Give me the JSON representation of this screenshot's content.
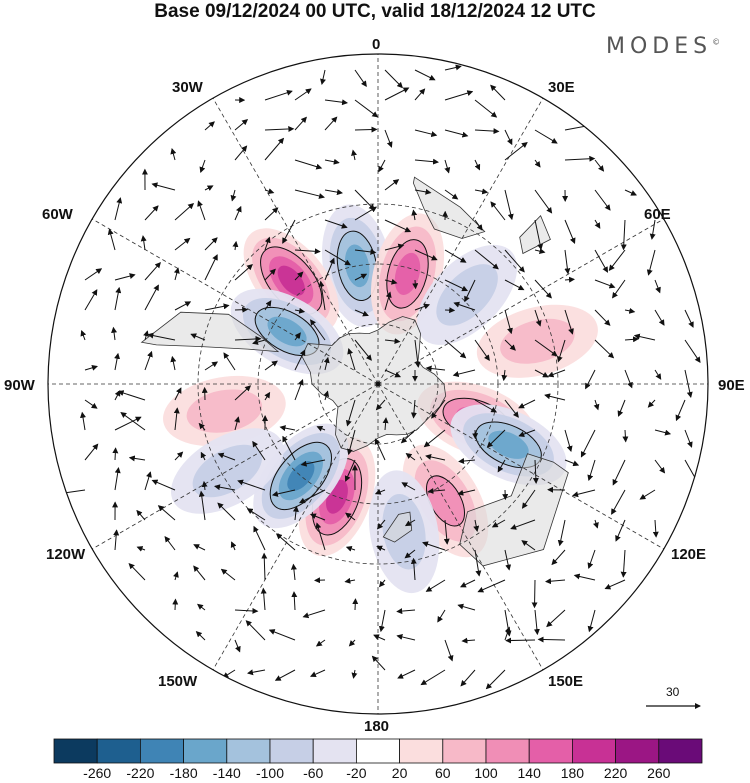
{
  "title": "Base 09/12/2024 00 UTC, valid 18/12/2024 12 UTC",
  "brand": "MODES",
  "brand_mark": "©",
  "longitude_labels": {
    "lon0": "0",
    "lon30e": "30E",
    "lon60e": "60E",
    "lon90e": "90E",
    "lon120e": "120E",
    "lon150e": "150E",
    "lon180": "180",
    "lon150w": "150W",
    "lon120w": "120W",
    "lon90w": "90W",
    "lon60w": "60W",
    "lon30w": "30W"
  },
  "reference_vector": "30",
  "colorbar": {
    "colors": [
      "#0c3a5f",
      "#1e5f8f",
      "#3f84b5",
      "#6aa6cb",
      "#a4c2dd",
      "#c6cfe6",
      "#e4e3f1",
      "#ffffff",
      "#fbdede",
      "#f7b9c8",
      "#f08eb6",
      "#e45fa8",
      "#c83195",
      "#9b1684",
      "#6a0b78"
    ],
    "ticks": [
      "-260",
      "-220",
      "-180",
      "-140",
      "-100",
      "-60",
      "-20",
      "20",
      "60",
      "100",
      "140",
      "180",
      "220",
      "260"
    ]
  },
  "anomaly_centers": [
    {
      "lon": -10,
      "lat": -50,
      "sign": -1,
      "value": -150
    },
    {
      "lon": 15,
      "lat": -52,
      "sign": 1,
      "value": 150
    },
    {
      "lon": -40,
      "lat": -45,
      "sign": 1,
      "value": 190
    },
    {
      "lon": -60,
      "lat": -55,
      "sign": -1,
      "value": -140
    },
    {
      "lon": 45,
      "lat": -48,
      "sign": -1,
      "value": -90
    },
    {
      "lon": 110,
      "lat": -55,
      "sign": 1,
      "value": 160
    },
    {
      "lon": 115,
      "lat": -42,
      "sign": -1,
      "value": -170
    },
    {
      "lon": 150,
      "lat": -45,
      "sign": 1,
      "value": 120
    },
    {
      "lon": 170,
      "lat": -40,
      "sign": -1,
      "value": -80
    },
    {
      "lon": -160,
      "lat": -50,
      "sign": 1,
      "value": 190
    },
    {
      "lon": -140,
      "lat": -50,
      "sign": -1,
      "value": -200
    },
    {
      "lon": -100,
      "lat": -38,
      "sign": 1,
      "value": 70
    },
    {
      "lon": -120,
      "lat": -32,
      "sign": -1,
      "value": -60
    },
    {
      "lon": 75,
      "lat": -35,
      "sign": 1,
      "value": 60
    }
  ]
}
